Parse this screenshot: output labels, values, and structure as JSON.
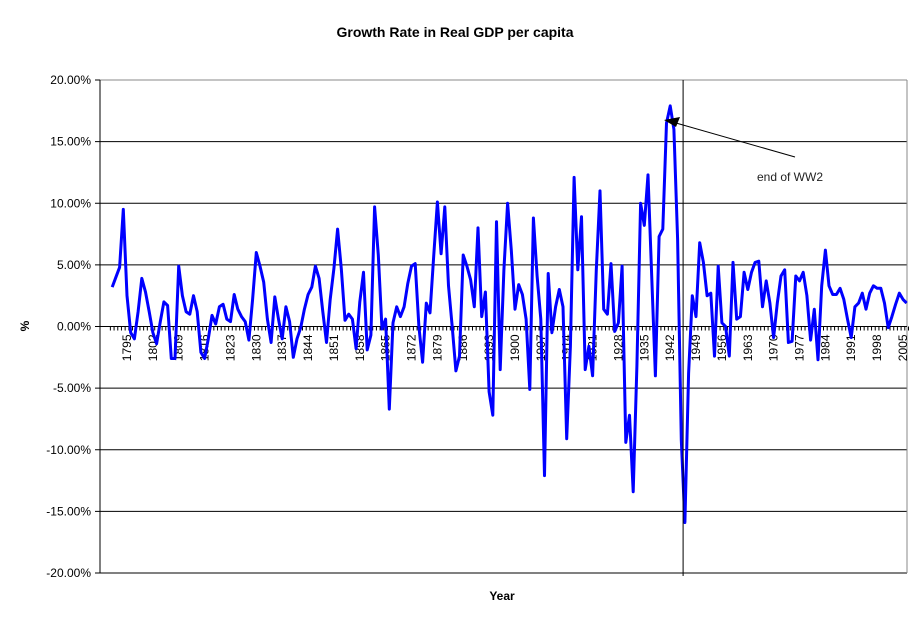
{
  "chart_data": {
    "type": "line",
    "title": "Growth Rate in Real GDP per capita",
    "xlabel": "Year",
    "ylabel": "%",
    "ylim": [
      -20,
      20
    ],
    "ytick_step": 5,
    "ytick_labels": [
      "20.00%",
      "15.00%",
      "10.00%",
      "5.00%",
      "0.00%",
      "-5.00%",
      "-10.00%",
      "-15.00%",
      "-20.00%"
    ],
    "grid": "horizontal",
    "legend": "none",
    "x_start": 1791,
    "x_end": 2006,
    "xtick_labels": [
      "1795",
      "1802",
      "1809",
      "1816",
      "1823",
      "1830",
      "1837",
      "1844",
      "1851",
      "1858",
      "1865",
      "1872",
      "1879",
      "1886",
      "1893",
      "1900",
      "1907",
      "1914",
      "1921",
      "1928",
      "1935",
      "1942",
      "1949",
      "1956",
      "1963",
      "1970",
      "1977",
      "1984",
      "1991",
      "1998",
      "2005"
    ],
    "series": [
      {
        "name": "Growth Rate in Real GDP per capita",
        "color": "#0000FF",
        "values": [
          3.2,
          4.0,
          4.8,
          9.5,
          2.5,
          -0.5,
          -1.0,
          1.2,
          3.9,
          2.8,
          1.2,
          -0.5,
          -1.4,
          0.4,
          2.0,
          1.7,
          -2.6,
          -2.6,
          4.9,
          2.5,
          1.2,
          1.0,
          2.5,
          1.2,
          -2.1,
          -2.6,
          -1.0,
          0.9,
          0.2,
          1.6,
          1.8,
          0.6,
          0.4,
          2.6,
          1.4,
          0.8,
          0.4,
          -1.1,
          2.2,
          6.0,
          4.9,
          3.6,
          0.6,
          -1.3,
          2.4,
          0.6,
          -1.0,
          1.6,
          0.4,
          -2.5,
          -1.0,
          -0.1,
          1.4,
          2.6,
          3.2,
          4.9,
          3.9,
          1.2,
          -1.3,
          2.2,
          4.7,
          7.9,
          4.7,
          0.5,
          1.0,
          0.6,
          -1.8,
          2.0,
          4.4,
          -1.9,
          -0.7,
          9.7,
          5.8,
          -0.2,
          0.6,
          -6.7,
          0.3,
          1.6,
          0.8,
          1.6,
          3.5,
          4.9,
          5.1,
          0.0,
          -2.9,
          1.9,
          1.1,
          5.7,
          10.1,
          5.9,
          9.7,
          3.3,
          0.0,
          -3.6,
          -2.4,
          5.8,
          4.9,
          3.8,
          1.6,
          8.0,
          0.8,
          2.8,
          -5.3,
          -7.2,
          8.5,
          -3.5,
          4.6,
          10.0,
          6.2,
          1.4,
          3.4,
          2.6,
          0.6,
          -5.1,
          8.8,
          4.1,
          0.6,
          -12.1,
          4.3,
          -0.5,
          1.6,
          3.0,
          1.6,
          -9.1,
          -1.6,
          12.1,
          4.6,
          8.9,
          -3.5,
          -1.6,
          -4.0,
          4.6,
          11.0,
          1.4,
          1.0,
          5.1,
          -0.4,
          0.3,
          4.9,
          -9.4,
          -7.2,
          -13.4,
          -3.2,
          10.0,
          8.2,
          12.3,
          4.1,
          -4.0,
          7.3,
          7.9,
          16.5,
          17.9,
          16.0,
          7.1,
          -9.2,
          -15.9,
          -3.8,
          2.5,
          0.8,
          6.8,
          5.2,
          2.5,
          2.7,
          -2.4,
          4.9,
          0.3,
          0.0,
          -2.4,
          5.2,
          0.6,
          0.8,
          4.4,
          3.0,
          4.4,
          5.2,
          5.3,
          1.6,
          3.7,
          1.9,
          -0.9,
          1.9,
          4.1,
          4.6,
          -1.3,
          -1.2,
          4.1,
          3.7,
          4.4,
          2.5,
          -1.1,
          1.4,
          -2.7,
          3.3,
          6.2,
          3.3,
          2.6,
          2.6,
          3.1,
          2.2,
          0.6,
          -0.9,
          1.6,
          1.9,
          2.7,
          1.4,
          2.7,
          3.3,
          3.1,
          3.1,
          1.9,
          -0.1,
          0.8,
          1.8,
          2.7,
          2.2,
          1.9
        ]
      }
    ],
    "annotations": [
      {
        "text": "end of WW2",
        "marker_year": 1945.5,
        "type": "vertical-line-with-arrow"
      }
    ]
  }
}
